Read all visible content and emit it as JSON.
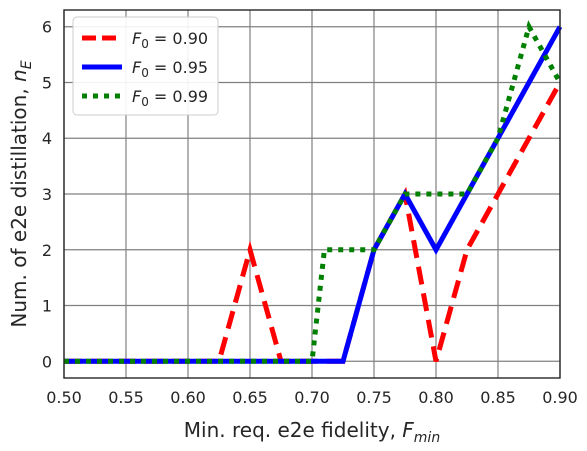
{
  "chart_data": {
    "type": "line",
    "xlabel": {
      "main": "Min. req. e2e fidelity, ",
      "var": "F",
      "sub": "min"
    },
    "ylabel": {
      "main": "Num. of e2e distillation, ",
      "var": "n",
      "sub": "E"
    },
    "xlim": [
      0.5,
      0.9
    ],
    "ylim": [
      -0.3,
      6.3
    ],
    "xticks": [
      0.5,
      0.55,
      0.6,
      0.65,
      0.7,
      0.75,
      0.8,
      0.85,
      0.9
    ],
    "xtick_labels": [
      "0.50",
      "0.55",
      "0.60",
      "0.65",
      "0.70",
      "0.75",
      "0.80",
      "0.85",
      "0.90"
    ],
    "yticks": [
      0,
      1,
      2,
      3,
      4,
      5,
      6
    ],
    "ytick_labels": [
      "0",
      "1",
      "2",
      "3",
      "4",
      "5",
      "6"
    ],
    "grid": true,
    "legend_position": "top-left",
    "series": [
      {
        "name": {
          "var": "F",
          "sub": "0",
          "rest": " = 0.90"
        },
        "color": "#ff0000",
        "style": "dashed",
        "x": [
          0.5,
          0.525,
          0.55,
          0.575,
          0.6,
          0.625,
          0.65,
          0.675,
          0.7,
          0.725,
          0.75,
          0.775,
          0.8,
          0.825,
          0.85,
          0.875,
          0.9
        ],
        "y": [
          0,
          0,
          0,
          0,
          0,
          0,
          2,
          0,
          0,
          0,
          2,
          3,
          0,
          2,
          3,
          4,
          5
        ]
      },
      {
        "name": {
          "var": "F",
          "sub": "0",
          "rest": " = 0.95"
        },
        "color": "#0000ff",
        "style": "solid",
        "x": [
          0.5,
          0.525,
          0.55,
          0.575,
          0.6,
          0.625,
          0.65,
          0.675,
          0.7,
          0.725,
          0.75,
          0.775,
          0.8,
          0.825,
          0.85,
          0.875,
          0.9
        ],
        "y": [
          0,
          0,
          0,
          0,
          0,
          0,
          0,
          0,
          0,
          0,
          2,
          3,
          2,
          3,
          4,
          5,
          6
        ]
      },
      {
        "name": {
          "var": "F",
          "sub": "0",
          "rest": " = 0.99"
        },
        "color": "#008000",
        "style": "dotted",
        "x": [
          0.5,
          0.525,
          0.55,
          0.575,
          0.6,
          0.625,
          0.65,
          0.675,
          0.7,
          0.71,
          0.725,
          0.74,
          0.75,
          0.775,
          0.8,
          0.825,
          0.85,
          0.875,
          0.9
        ],
        "y": [
          0,
          0,
          0,
          0,
          0,
          0,
          0,
          0,
          0,
          2,
          2,
          2,
          2,
          3,
          3,
          3,
          4,
          6,
          5
        ]
      }
    ]
  }
}
